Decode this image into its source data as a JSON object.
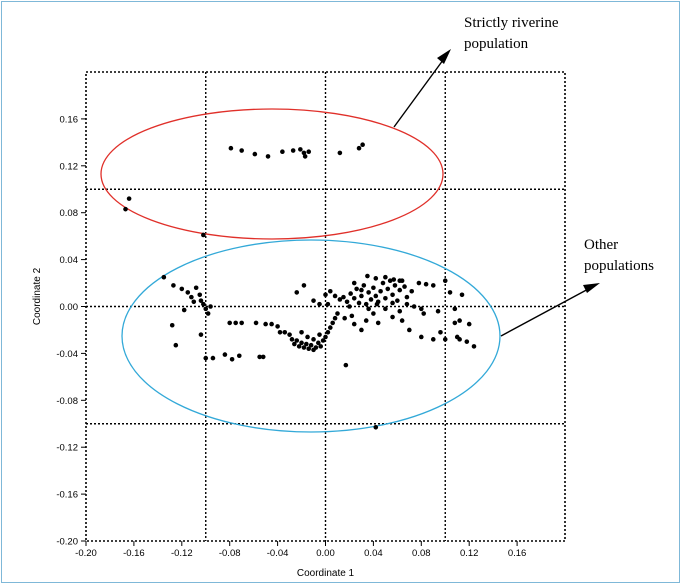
{
  "chart_data": {
    "type": "scatter",
    "xlabel": "Coordinate 1",
    "ylabel": "Coordinate 2",
    "xlim": [
      -0.2,
      0.2
    ],
    "ylim": [
      -0.2,
      0.2
    ],
    "x_ticks": [
      -0.2,
      -0.16,
      -0.12,
      -0.08,
      -0.04,
      0.0,
      0.04,
      0.08,
      0.12,
      0.16
    ],
    "x_tick_labels": [
      "-0.20",
      "-0.16",
      "-0.12",
      "-0.08",
      "-0.04",
      "0.00",
      "0.04",
      "0.08",
      "0.12",
      "0.16"
    ],
    "y_ticks": [
      0.16,
      0.12,
      0.08,
      0.04,
      0.0,
      -0.04,
      -0.08,
      -0.12,
      -0.16,
      -0.2
    ],
    "y_tick_labels": [
      "0.16",
      "0.12",
      "0.08",
      "0.04",
      "0.00",
      "-0.04",
      "-0.08",
      "-0.12",
      "-0.16",
      "-0.20"
    ],
    "grid_x": [
      -0.1,
      0.0,
      0.1
    ],
    "grid_y": [
      0.1,
      0.0,
      -0.1
    ],
    "grid": "dotted",
    "point_color": "#000000",
    "points": [
      [
        -0.079,
        0.135
      ],
      [
        -0.07,
        0.133
      ],
      [
        -0.059,
        0.13
      ],
      [
        -0.048,
        0.128
      ],
      [
        -0.036,
        0.132
      ],
      [
        -0.027,
        0.133
      ],
      [
        -0.021,
        0.134
      ],
      [
        -0.018,
        0.131
      ],
      [
        -0.017,
        0.128
      ],
      [
        -0.014,
        0.132
      ],
      [
        0.012,
        0.131
      ],
      [
        0.028,
        0.135
      ],
      [
        0.031,
        0.138
      ],
      [
        -0.164,
        0.092
      ],
      [
        -0.167,
        0.083
      ],
      [
        -0.102,
        0.061
      ],
      [
        -0.135,
        0.025
      ],
      [
        -0.127,
        0.018
      ],
      [
        -0.12,
        0.015
      ],
      [
        -0.115,
        0.012
      ],
      [
        -0.112,
        0.008
      ],
      [
        -0.108,
        0.016
      ],
      [
        -0.105,
        0.01
      ],
      [
        -0.104,
        0.005
      ],
      [
        -0.102,
        0.002
      ],
      [
        -0.1,
        -0.002
      ],
      [
        -0.098,
        -0.006
      ],
      [
        -0.096,
        0.0
      ],
      [
        -0.11,
        0.004
      ],
      [
        -0.118,
        -0.003
      ],
      [
        -0.128,
        -0.016
      ],
      [
        -0.125,
        -0.033
      ],
      [
        -0.104,
        -0.024
      ],
      [
        -0.1,
        -0.044
      ],
      [
        -0.094,
        -0.044
      ],
      [
        -0.084,
        -0.041
      ],
      [
        -0.078,
        -0.045
      ],
      [
        -0.072,
        -0.042
      ],
      [
        -0.08,
        -0.014
      ],
      [
        -0.075,
        -0.014
      ],
      [
        -0.07,
        -0.014
      ],
      [
        -0.058,
        -0.014
      ],
      [
        -0.05,
        -0.015
      ],
      [
        -0.055,
        -0.043
      ],
      [
        -0.052,
        -0.043
      ],
      [
        -0.045,
        -0.015
      ],
      [
        -0.04,
        -0.017
      ],
      [
        -0.038,
        -0.022
      ],
      [
        -0.034,
        -0.022
      ],
      [
        -0.03,
        -0.024
      ],
      [
        -0.028,
        -0.028
      ],
      [
        -0.026,
        -0.032
      ],
      [
        -0.024,
        -0.029
      ],
      [
        -0.022,
        -0.034
      ],
      [
        -0.02,
        -0.031
      ],
      [
        -0.018,
        -0.035
      ],
      [
        -0.016,
        -0.032
      ],
      [
        -0.014,
        -0.036
      ],
      [
        -0.012,
        -0.033
      ],
      [
        -0.01,
        -0.037
      ],
      [
        -0.008,
        -0.035
      ],
      [
        -0.006,
        -0.031
      ],
      [
        -0.004,
        -0.034
      ],
      [
        -0.002,
        -0.029
      ],
      [
        0.0,
        -0.026
      ],
      [
        0.002,
        -0.022
      ],
      [
        0.004,
        -0.018
      ],
      [
        0.006,
        -0.014
      ],
      [
        0.008,
        -0.01
      ],
      [
        0.01,
        -0.006
      ],
      [
        -0.02,
        -0.022
      ],
      [
        -0.015,
        -0.026
      ],
      [
        -0.01,
        -0.028
      ],
      [
        -0.005,
        -0.024
      ],
      [
        -0.01,
        0.005
      ],
      [
        0.0,
        0.01
      ],
      [
        0.004,
        0.013
      ],
      [
        0.008,
        0.009
      ],
      [
        0.012,
        0.006
      ],
      [
        0.015,
        0.008
      ],
      [
        0.018,
        0.004
      ],
      [
        0.021,
        0.011
      ],
      [
        0.024,
        0.007
      ],
      [
        0.026,
        0.015
      ],
      [
        0.028,
        0.003
      ],
      [
        0.03,
        0.009
      ],
      [
        0.032,
        0.018
      ],
      [
        0.034,
        0.002
      ],
      [
        0.036,
        0.012
      ],
      [
        0.038,
        0.006
      ],
      [
        0.04,
        0.016
      ],
      [
        0.042,
        0.009
      ],
      [
        0.044,
        0.004
      ],
      [
        0.046,
        0.013
      ],
      [
        0.048,
        0.02
      ],
      [
        0.05,
        0.007
      ],
      [
        0.052,
        0.015
      ],
      [
        0.054,
        0.022
      ],
      [
        0.056,
        0.01
      ],
      [
        0.058,
        0.018
      ],
      [
        0.06,
        0.005
      ],
      [
        0.062,
        0.014
      ],
      [
        0.064,
        0.022
      ],
      [
        0.066,
        0.017
      ],
      [
        0.068,
        0.008
      ],
      [
        0.072,
        0.013
      ],
      [
        0.078,
        0.02
      ],
      [
        0.084,
        0.019
      ],
      [
        0.09,
        0.018
      ],
      [
        0.035,
        0.026
      ],
      [
        0.042,
        0.024
      ],
      [
        0.05,
        0.025
      ],
      [
        0.057,
        0.023
      ],
      [
        0.062,
        0.022
      ],
      [
        0.024,
        0.02
      ],
      [
        0.03,
        0.014
      ],
      [
        0.036,
        -0.002
      ],
      [
        0.043,
        0.002
      ],
      [
        0.05,
        -0.002
      ],
      [
        0.056,
        0.003
      ],
      [
        0.062,
        -0.004
      ],
      [
        0.068,
        0.002
      ],
      [
        0.074,
        0.0
      ],
      [
        0.08,
        -0.002
      ],
      [
        0.02,
        0.0
      ],
      [
        0.016,
        -0.01
      ],
      [
        0.022,
        -0.008
      ],
      [
        0.024,
        -0.015
      ],
      [
        0.03,
        -0.02
      ],
      [
        0.034,
        -0.012
      ],
      [
        0.04,
        -0.006
      ],
      [
        0.044,
        -0.014
      ],
      [
        0.056,
        -0.009
      ],
      [
        0.064,
        -0.012
      ],
      [
        0.07,
        -0.02
      ],
      [
        0.082,
        -0.006
      ],
      [
        0.094,
        -0.004
      ],
      [
        0.108,
        -0.014
      ],
      [
        0.112,
        -0.012
      ],
      [
        0.12,
        -0.015
      ],
      [
        0.112,
        -0.028
      ],
      [
        0.118,
        -0.03
      ],
      [
        0.124,
        -0.034
      ],
      [
        0.1,
        0.022
      ],
      [
        0.104,
        0.012
      ],
      [
        0.108,
        -0.002
      ],
      [
        0.114,
        0.01
      ],
      [
        0.09,
        -0.028
      ],
      [
        0.1,
        -0.028
      ],
      [
        0.11,
        -0.026
      ],
      [
        0.096,
        -0.022
      ],
      [
        0.08,
        -0.026
      ],
      [
        -0.024,
        0.012
      ],
      [
        -0.018,
        0.018
      ],
      [
        -0.005,
        0.002
      ],
      [
        0.002,
        0.002
      ],
      [
        0.017,
        -0.05
      ],
      [
        0.042,
        -0.103
      ]
    ],
    "annotations": [
      {
        "text_lines": [
          "Strictly riverine",
          "population"
        ]
      },
      {
        "text_lines": [
          "Other",
          "populations"
        ]
      }
    ]
  }
}
